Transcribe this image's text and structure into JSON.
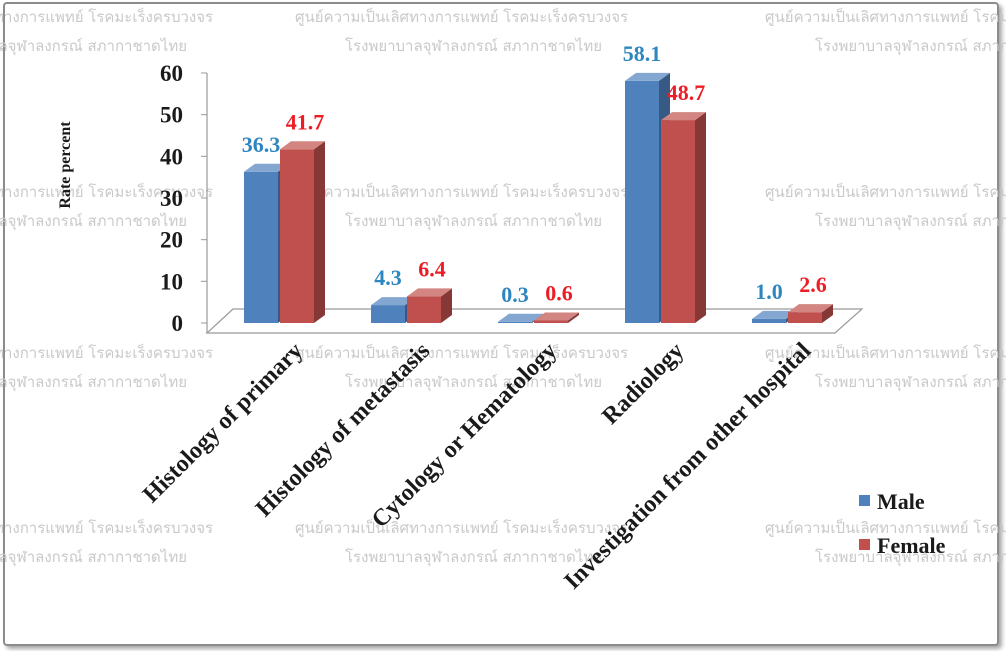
{
  "watermark": {
    "line1": "ศูนย์ความเป็นเลิศทางการแพทย์ โรคมะเร็งครบวงจร",
    "line2": "โรงพยาบาลจุฬาลงกรณ์ สภากาชาดไทย"
  },
  "chart_data": {
    "type": "bar",
    "subtype": "3d-clustered-column",
    "ylabel": "Rate percent",
    "xlabel": "",
    "ylim": [
      0,
      60
    ],
    "yticks": [
      0,
      10,
      20,
      30,
      40,
      50,
      60
    ],
    "grid": false,
    "legend_position": "bottom-right",
    "categories": [
      "Histology of primary",
      "Histology of metastasis",
      "Cytology or Hematology",
      "Radiology",
      "Investigation from other hospital"
    ],
    "series": [
      {
        "name": "Male",
        "color": "#4f81bd",
        "label_color": "#2e86c1",
        "values": [
          36.3,
          4.3,
          0.3,
          58.1,
          1.0
        ]
      },
      {
        "name": "Female",
        "color": "#c0504d",
        "label_color": "#ee1c25",
        "values": [
          41.7,
          6.4,
          0.6,
          48.7,
          2.6
        ]
      }
    ],
    "value_labels": [
      [
        "36.3",
        "4.3",
        "0.3",
        "58.1",
        "1.0"
      ],
      [
        "41.7",
        "6.4",
        "0.6",
        "48.7",
        "2.6"
      ]
    ]
  }
}
